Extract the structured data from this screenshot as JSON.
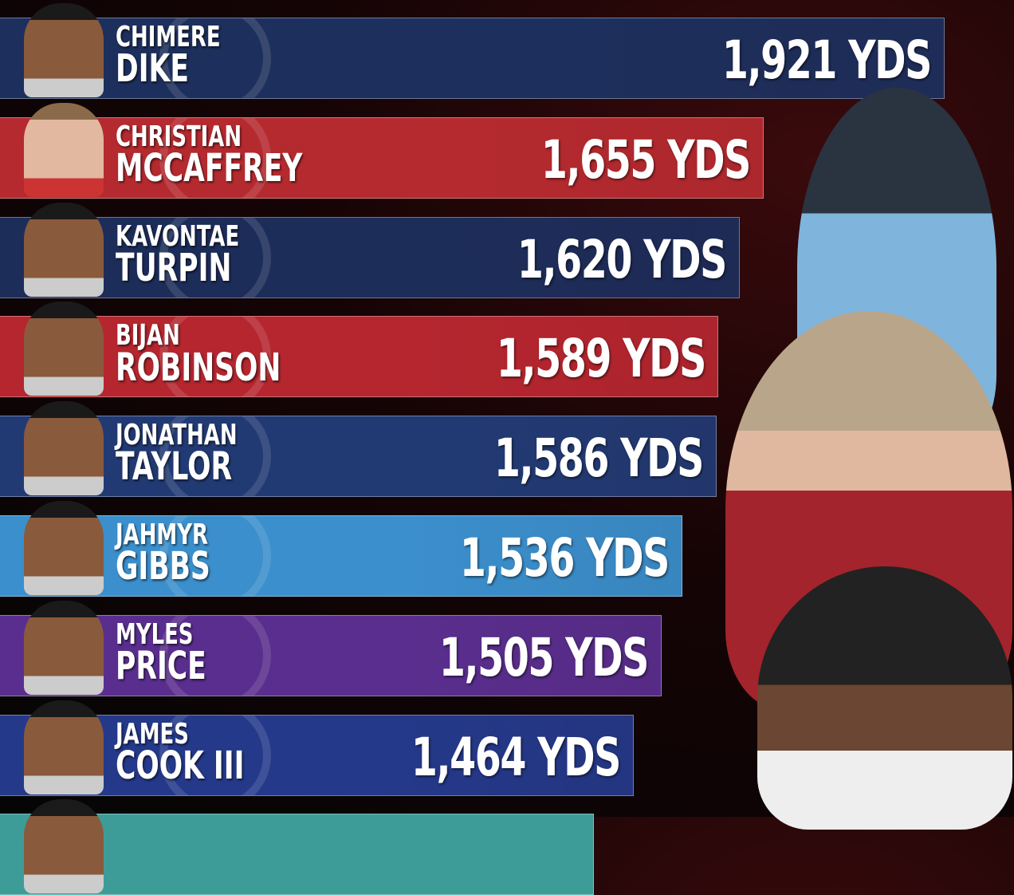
{
  "chart_data": {
    "type": "bar",
    "orientation": "horizontal",
    "unit": "YDS",
    "categories": [
      "Chimere Dike",
      "Christian McCaffrey",
      "KaVontae Turpin",
      "Bijan Robinson",
      "Jonathan Taylor",
      "Jahmyr Gibbs",
      "Myles Price",
      "James Cook III"
    ],
    "rows": [
      {
        "first": "CHIMERE",
        "last": "DIKE",
        "value": 1921,
        "label": "1,921 YDS",
        "color": "#1d2f5c"
      },
      {
        "first": "CHRISTIAN",
        "last": "MCCAFFREY",
        "value": 1655,
        "label": "1,655 YDS",
        "color": "#b52a2f"
      },
      {
        "first": "KAVONTAE",
        "last": "TURPIN",
        "value": 1620,
        "label": "1,620 YDS",
        "color": "#1d2d5a"
      },
      {
        "first": "BIJAN",
        "last": "ROBINSON",
        "value": 1589,
        "label": "1,589 YDS",
        "color": "#b5262f"
      },
      {
        "first": "JONATHAN",
        "last": "TAYLOR",
        "value": 1586,
        "label": "1,586 YDS",
        "color": "#223a74"
      },
      {
        "first": "JAHMYR",
        "last": "GIBBS",
        "value": 1536,
        "label": "1,536 YDS",
        "color": "#3b8fcc"
      },
      {
        "first": "MYLES",
        "last": "PRICE",
        "value": 1505,
        "label": "1,505 YDS",
        "color": "#5a2e8e"
      },
      {
        "first": "JAMES",
        "last": "COOK III",
        "value": 1464,
        "label": "1,464 YDS",
        "color": "#25398a"
      }
    ],
    "partial_row_color": "#3e9c98"
  }
}
